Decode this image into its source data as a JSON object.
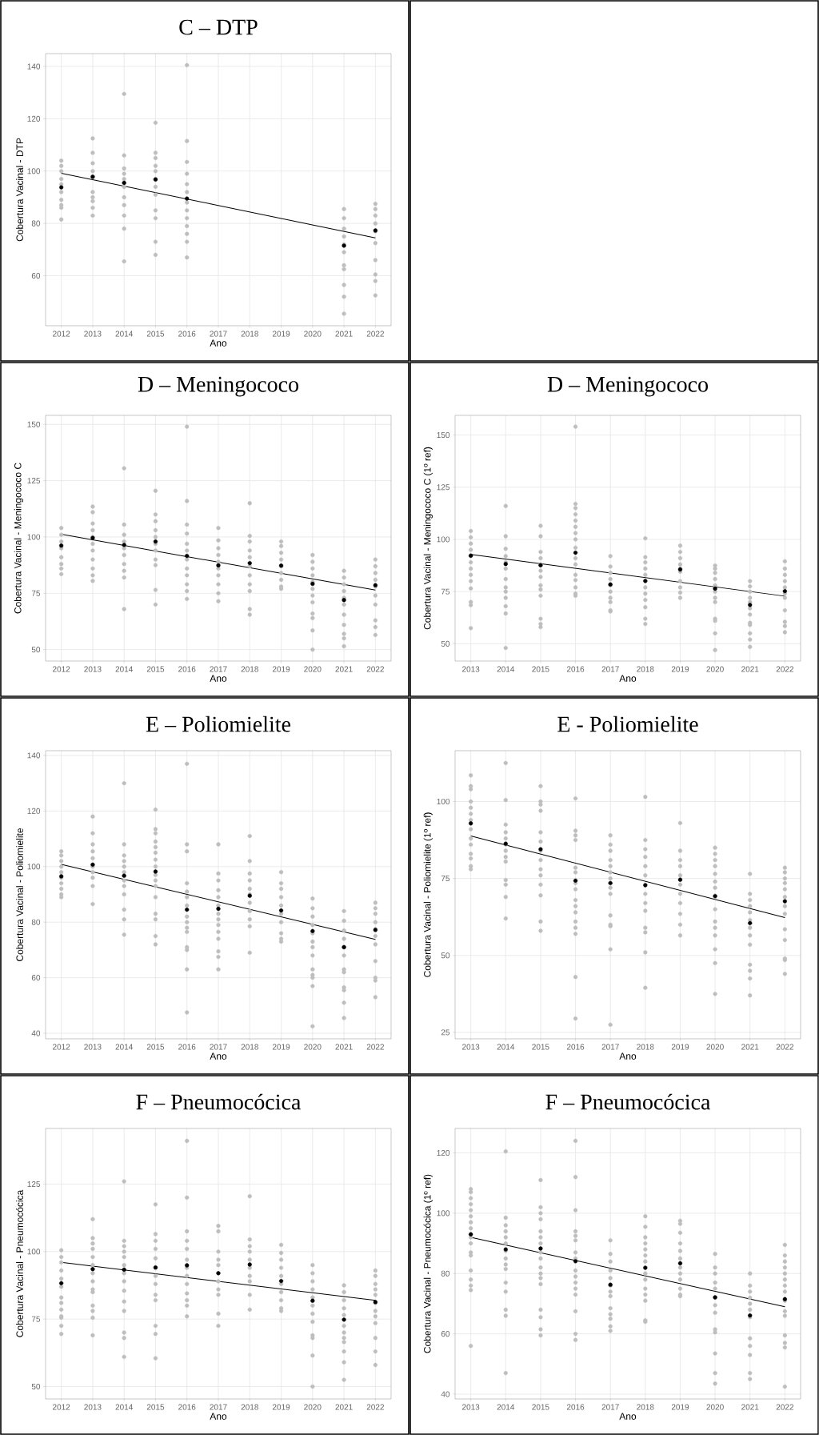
{
  "chart_data": [
    {
      "type": "scatter",
      "title": "C – DTP",
      "xlabel": "Ano",
      "ylabel": "Cobertura Vacinal - DTP",
      "xlim": [
        2011.5,
        2022.5
      ],
      "ylim": [
        40.9,
        144.9
      ],
      "xticks": [
        2012,
        2013,
        2014,
        2015,
        2016,
        2017,
        2018,
        2019,
        2020,
        2021,
        2022
      ],
      "yticks": [
        60,
        80,
        100,
        120,
        140
      ],
      "grid": true,
      "marker": "circle",
      "series": [
        {
          "color": "#bebebe",
          "x": [
            2012,
            2012,
            2012,
            2012,
            2012,
            2012,
            2012,
            2012,
            2012,
            2012,
            2013,
            2013,
            2013,
            2013,
            2013,
            2013,
            2013,
            2013,
            2013,
            2013,
            2014,
            2014,
            2014,
            2014,
            2014,
            2014,
            2014,
            2014,
            2014,
            2014,
            2014,
            2015,
            2015,
            2015,
            2015,
            2015,
            2015,
            2015,
            2015,
            2015,
            2015,
            2015,
            2015,
            2016,
            2016,
            2016,
            2016,
            2016,
            2016,
            2016,
            2016,
            2016,
            2016,
            2016,
            2016,
            2016,
            2021,
            2021,
            2021,
            2021,
            2021,
            2021,
            2021,
            2021,
            2021,
            2021,
            2021,
            2022,
            2022,
            2022,
            2022,
            2022,
            2022,
            2022,
            2022,
            2022,
            2022
          ],
          "values": [
            104,
            102,
            100,
            97,
            95,
            92,
            89,
            87,
            86,
            81.5,
            112.5,
            107,
            103,
            100,
            98,
            92,
            90,
            88.5,
            86,
            83,
            129.5,
            106,
            101,
            99,
            97,
            94,
            90,
            87,
            83,
            78,
            65.5,
            118.5,
            107,
            105,
            102,
            100,
            97,
            94,
            91,
            85,
            82,
            73,
            68,
            140.5,
            111.5,
            103.5,
            99,
            95,
            92,
            88,
            85,
            82,
            79,
            76,
            73,
            67,
            85.5,
            82,
            78,
            75,
            72,
            69,
            64,
            62.5,
            56.5,
            52,
            45.5,
            87.5,
            85.5,
            83,
            80,
            77,
            72.5,
            66,
            60.5,
            58,
            52.5
          ]
        },
        {
          "color": "#000000",
          "x": [
            2012,
            2013,
            2014,
            2015,
            2016,
            2021,
            2022
          ],
          "values": [
            93.8,
            97.8,
            95.5,
            96.8,
            89.5,
            71.5,
            77.3
          ]
        },
        {
          "type": "line",
          "marker": "none",
          "color": "#000000",
          "x": [
            2012,
            2022
          ],
          "values": [
            99.2,
            74.5
          ]
        }
      ]
    },
    {
      "type": "scatter",
      "title": "D – Meningococo",
      "xlabel": "Ano",
      "ylabel": "Cobertura Vacinal - Meningococo C",
      "xlim": [
        2011.5,
        2022.5
      ],
      "ylim": [
        44.9,
        154
      ],
      "xticks": [
        2012,
        2013,
        2014,
        2015,
        2016,
        2017,
        2018,
        2019,
        2020,
        2021,
        2022
      ],
      "yticks": [
        50,
        75,
        100,
        125,
        150
      ],
      "grid": true,
      "marker": "circle",
      "series": [
        {
          "color": "#bebebe",
          "x": [
            2012,
            2012,
            2012,
            2012,
            2012,
            2012,
            2012,
            2012,
            2013,
            2013,
            2013,
            2013,
            2013,
            2013,
            2013,
            2013,
            2013,
            2013,
            2013,
            2014,
            2014,
            2014,
            2014,
            2014,
            2014,
            2014,
            2014,
            2014,
            2014,
            2015,
            2015,
            2015,
            2015,
            2015,
            2015,
            2015,
            2015,
            2015,
            2015,
            2015,
            2016,
            2016,
            2016,
            2016,
            2016,
            2016,
            2016,
            2016,
            2016,
            2016,
            2016,
            2016,
            2017,
            2017,
            2017,
            2017,
            2017,
            2017,
            2017,
            2017,
            2017,
            2017,
            2018,
            2018,
            2018,
            2018,
            2018,
            2018,
            2018,
            2018,
            2018,
            2018,
            2018,
            2019,
            2019,
            2019,
            2019,
            2019,
            2019,
            2019,
            2019,
            2019,
            2020,
            2020,
            2020,
            2020,
            2020,
            2020,
            2020,
            2020,
            2020,
            2020,
            2020,
            2020,
            2021,
            2021,
            2021,
            2021,
            2021,
            2021,
            2021,
            2021,
            2021,
            2021,
            2021,
            2022,
            2022,
            2022,
            2022,
            2022,
            2022,
            2022,
            2022,
            2022,
            2022
          ],
          "values": [
            104,
            101,
            98,
            95,
            91,
            88,
            86,
            83.5,
            113.5,
            111,
            106,
            103,
            100,
            97,
            94,
            90,
            86,
            83,
            80.5,
            130.5,
            105.5,
            101,
            98,
            95,
            92,
            88,
            85,
            82,
            68,
            120.5,
            110,
            107,
            103,
            100,
            97,
            94,
            90,
            87.5,
            76.5,
            70,
            149,
            116,
            105.5,
            101.5,
            97,
            94,
            90,
            86,
            83,
            79,
            76,
            72.5,
            104,
            98.5,
            95,
            92,
            89,
            86,
            83,
            79,
            75,
            71.5,
            115,
            100.5,
            98,
            94,
            91,
            87,
            83,
            79,
            76,
            68,
            65.5,
            98,
            96,
            93,
            90,
            87,
            84,
            81,
            78,
            77,
            92,
            89,
            86,
            83,
            80,
            77,
            74,
            71,
            66,
            64,
            58.5,
            50,
            85,
            82,
            79,
            76,
            73,
            70,
            65.5,
            61,
            57,
            55,
            51.5,
            90,
            87,
            84,
            81,
            78,
            74,
            70,
            63,
            60,
            56.5
          ]
        },
        {
          "color": "#000000",
          "x": [
            2012,
            2013,
            2014,
            2015,
            2016,
            2017,
            2018,
            2019,
            2020,
            2021,
            2022
          ],
          "values": [
            96.2,
            99.6,
            96.5,
            98,
            91.6,
            87.4,
            88.4,
            87.3,
            79.2,
            72,
            78.6
          ]
        },
        {
          "type": "line",
          "marker": "none",
          "color": "#000000",
          "x": [
            2012,
            2022
          ],
          "values": [
            101.2,
            76.4
          ]
        }
      ]
    },
    {
      "type": "scatter",
      "title": "D – Meningococo",
      "xlabel": "Ano",
      "ylabel": "Cobertura Vacinal - Meningococo C (1º ref)",
      "xlim": [
        2012.55,
        2022.45
      ],
      "ylim": [
        41.7,
        159.4
      ],
      "xticks": [
        2013,
        2014,
        2015,
        2016,
        2017,
        2018,
        2019,
        2020,
        2021,
        2022
      ],
      "yticks": [
        50,
        75,
        100,
        125,
        150
      ],
      "grid": true,
      "marker": "circle",
      "series": [
        {
          "color": "#bebebe",
          "x": [
            2013,
            2013,
            2013,
            2013,
            2013,
            2013,
            2013,
            2013,
            2013,
            2013,
            2013,
            2013,
            2013,
            2014,
            2014,
            2014,
            2014,
            2014,
            2014,
            2014,
            2014,
            2014,
            2014,
            2014,
            2014,
            2014,
            2015,
            2015,
            2015,
            2015,
            2015,
            2015,
            2015,
            2015,
            2015,
            2015,
            2015,
            2015,
            2015,
            2016,
            2016,
            2016,
            2016,
            2016,
            2016,
            2016,
            2016,
            2016,
            2016,
            2016,
            2016,
            2016,
            2016,
            2016,
            2016,
            2017,
            2017,
            2017,
            2017,
            2017,
            2017,
            2017,
            2017,
            2017,
            2017,
            2018,
            2018,
            2018,
            2018,
            2018,
            2018,
            2018,
            2018,
            2018,
            2018,
            2018,
            2018,
            2019,
            2019,
            2019,
            2019,
            2019,
            2019,
            2019,
            2019,
            2019,
            2019,
            2020,
            2020,
            2020,
            2020,
            2020,
            2020,
            2020,
            2020,
            2020,
            2020,
            2020,
            2020,
            2021,
            2021,
            2021,
            2021,
            2021,
            2021,
            2021,
            2021,
            2021,
            2021,
            2021,
            2021,
            2022,
            2022,
            2022,
            2022,
            2022,
            2022,
            2022,
            2022,
            2022,
            2022,
            2022
          ],
          "values": [
            104,
            101,
            98,
            95,
            92,
            89,
            86,
            83,
            80,
            76.5,
            70,
            68.5,
            57.5,
            116,
            101.5,
            95.5,
            92,
            89,
            86,
            81,
            77,
            75,
            72,
            68,
            64.5,
            48,
            106.5,
            101.5,
            94,
            91,
            88,
            85,
            82,
            78,
            76,
            73,
            62,
            59.5,
            58,
            154,
            117,
            115,
            112,
            109,
            106,
            103,
            100,
            96,
            91,
            88,
            83,
            80.5,
            77,
            74,
            73,
            92,
            87,
            84,
            81,
            78,
            75,
            72,
            70,
            66,
            65.5,
            100.5,
            91.5,
            89,
            86,
            83,
            80,
            77,
            74,
            71,
            67.5,
            62,
            59.5,
            97,
            94,
            91,
            88,
            86,
            84.5,
            80,
            77,
            74.5,
            72,
            87.5,
            86,
            84,
            81,
            78,
            75,
            72,
            70,
            62,
            61,
            55,
            47,
            80,
            77.5,
            75,
            72,
            70,
            67,
            64,
            60,
            59,
            55,
            52,
            48.5,
            89.5,
            86,
            83,
            80,
            77,
            74,
            72,
            66,
            60.5,
            58.5,
            55.5
          ]
        },
        {
          "color": "#000000",
          "x": [
            2013,
            2014,
            2015,
            2016,
            2017,
            2018,
            2019,
            2020,
            2021,
            2022
          ],
          "values": [
            92.2,
            88.2,
            87.6,
            93.6,
            78.4,
            80.1,
            85.6,
            76.4,
            68.6,
            75.2
          ]
        },
        {
          "type": "line",
          "marker": "none",
          "color": "#000000",
          "x": [
            2013,
            2022
          ],
          "values": [
            92.8,
            72.8
          ]
        }
      ]
    },
    {
      "type": "scatter",
      "title": "E – Poliomielite",
      "xlabel": "Ano",
      "ylabel": "Cobertura Vacinal - Poliomielite",
      "xlim": [
        2011.5,
        2022.5
      ],
      "ylim": [
        38,
        141.7
      ],
      "xticks": [
        2012,
        2013,
        2014,
        2015,
        2016,
        2017,
        2018,
        2019,
        2020,
        2021,
        2022
      ],
      "yticks": [
        40,
        60,
        80,
        100,
        120,
        140
      ],
      "grid": true,
      "marker": "circle",
      "series": [
        {
          "color": "#bebebe",
          "x": [
            2012,
            2012,
            2012,
            2012,
            2012,
            2012,
            2012,
            2012,
            2012,
            2012,
            2013,
            2013,
            2013,
            2013,
            2013,
            2013,
            2013,
            2013,
            2013,
            2013,
            2014,
            2014,
            2014,
            2014,
            2014,
            2014,
            2014,
            2014,
            2014,
            2014,
            2014,
            2014,
            2015,
            2015,
            2015,
            2015,
            2015,
            2015,
            2015,
            2015,
            2015,
            2015,
            2015,
            2015,
            2015,
            2015,
            2015,
            2015,
            2016,
            2016,
            2016,
            2016,
            2016,
            2016,
            2016,
            2016,
            2016,
            2016,
            2016,
            2016,
            2016,
            2016,
            2016,
            2017,
            2017,
            2017,
            2017,
            2017,
            2017,
            2017,
            2017,
            2017,
            2017,
            2017,
            2017,
            2017,
            2017,
            2018,
            2018,
            2018,
            2018,
            2018,
            2018,
            2018,
            2018,
            2018,
            2018,
            2018,
            2019,
            2019,
            2019,
            2019,
            2019,
            2019,
            2019,
            2019,
            2019,
            2019,
            2020,
            2020,
            2020,
            2020,
            2020,
            2020,
            2020,
            2020,
            2020,
            2020,
            2020,
            2020,
            2020,
            2021,
            2021,
            2021,
            2021,
            2021,
            2021,
            2021,
            2021,
            2021,
            2021,
            2021,
            2021,
            2022,
            2022,
            2022,
            2022,
            2022,
            2022,
            2022,
            2022,
            2022,
            2022,
            2022
          ],
          "values": [
            105.5,
            104,
            102,
            100,
            98,
            96,
            94,
            92,
            90,
            89,
            118,
            112,
            108,
            105.5,
            103,
            100,
            98,
            96,
            93,
            86.5,
            130,
            108,
            104,
            102,
            100,
            98,
            95,
            93,
            90,
            84.5,
            81,
            75.5,
            120.5,
            113.5,
            112,
            109,
            107,
            105,
            102.5,
            100,
            97,
            95,
            93,
            89,
            83,
            81,
            75,
            72,
            137,
            108,
            105.5,
            94,
            91,
            89,
            86,
            82,
            80,
            78,
            76.5,
            71,
            70,
            63,
            47.5,
            108,
            97.5,
            95,
            91.5,
            89,
            86,
            83,
            81,
            79,
            76.5,
            74,
            69.5,
            67.5,
            63,
            111,
            102,
            97.5,
            95,
            92,
            90,
            87,
            84,
            81,
            78.5,
            69,
            98,
            94,
            92,
            89,
            86,
            83,
            80,
            76,
            74,
            73,
            88.5,
            85,
            82,
            79,
            76,
            73,
            71,
            68,
            63,
            61,
            60,
            57,
            42.5,
            84,
            80.5,
            77,
            74,
            71,
            68,
            63,
            62,
            56.5,
            55.5,
            51,
            45.5,
            87,
            85,
            83,
            80,
            77.5,
            75,
            72,
            66,
            60,
            59,
            53
          ]
        },
        {
          "color": "#000000",
          "x": [
            2012,
            2013,
            2014,
            2015,
            2016,
            2017,
            2018,
            2019,
            2020,
            2021,
            2022
          ],
          "values": [
            96.5,
            100.7,
            96.7,
            98.2,
            84.5,
            84.8,
            89.5,
            84.2,
            76.8,
            71,
            77.2
          ]
        },
        {
          "type": "line",
          "marker": "none",
          "color": "#000000",
          "x": [
            2012,
            2022
          ],
          "values": [
            100.8,
            73.8
          ]
        }
      ]
    },
    {
      "type": "scatter",
      "title": "E - Poliomielite",
      "xlabel": "Ano",
      "ylabel": "Cobertura Vacinal - Poliomielite (1º ref)",
      "xlim": [
        2012.55,
        2022.45
      ],
      "ylim": [
        22.9,
        116.5
      ],
      "xticks": [
        2013,
        2014,
        2015,
        2016,
        2017,
        2018,
        2019,
        2020,
        2021,
        2022
      ],
      "yticks": [
        25,
        50,
        75,
        100
      ],
      "grid": true,
      "marker": "circle",
      "series": [
        {
          "color": "#bebebe",
          "x": [
            2013,
            2013,
            2013,
            2013,
            2013,
            2013,
            2013,
            2013,
            2013,
            2013,
            2013,
            2013,
            2013,
            2013,
            2014,
            2014,
            2014,
            2014,
            2014,
            2014,
            2014,
            2014,
            2014,
            2014,
            2014,
            2014,
            2014,
            2015,
            2015,
            2015,
            2015,
            2015,
            2015,
            2015,
            2015,
            2015,
            2015,
            2015,
            2015,
            2015,
            2015,
            2016,
            2016,
            2016,
            2016,
            2016,
            2016,
            2016,
            2016,
            2016,
            2016,
            2016,
            2016,
            2016,
            2016,
            2016,
            2016,
            2017,
            2017,
            2017,
            2017,
            2017,
            2017,
            2017,
            2017,
            2017,
            2017,
            2017,
            2017,
            2017,
            2017,
            2018,
            2018,
            2018,
            2018,
            2018,
            2018,
            2018,
            2018,
            2018,
            2018,
            2018,
            2018,
            2018,
            2018,
            2019,
            2019,
            2019,
            2019,
            2019,
            2019,
            2019,
            2019,
            2019,
            2019,
            2019,
            2020,
            2020,
            2020,
            2020,
            2020,
            2020,
            2020,
            2020,
            2020,
            2020,
            2020,
            2020,
            2020,
            2020,
            2020,
            2021,
            2021,
            2021,
            2021,
            2021,
            2021,
            2021,
            2021,
            2021,
            2021,
            2021,
            2021,
            2021,
            2022,
            2022,
            2022,
            2022,
            2022,
            2022,
            2022,
            2022,
            2022,
            2022,
            2022,
            2022,
            2022
          ],
          "values": [
            108.5,
            105,
            104,
            100,
            98,
            96,
            94,
            91,
            88,
            86,
            83,
            81.5,
            79,
            78,
            112.5,
            100.5,
            92.5,
            90,
            88,
            86,
            84,
            82,
            80.5,
            74.5,
            73,
            69,
            62,
            105,
            100,
            99,
            97,
            90,
            87,
            84,
            81,
            78,
            76,
            73,
            69.5,
            61,
            58,
            101,
            90.5,
            89,
            87.5,
            78.5,
            77,
            73.5,
            71.5,
            68,
            66,
            64,
            61,
            59,
            57,
            43,
            29.5,
            89,
            86,
            84,
            81,
            79,
            77,
            75,
            72,
            70,
            63,
            60,
            59.5,
            52,
            27.5,
            101.5,
            87.5,
            84.5,
            82,
            79,
            76,
            73,
            70,
            67,
            64.5,
            59,
            57.5,
            51,
            39.5,
            93,
            84,
            81,
            79,
            76,
            73,
            70,
            67,
            63.5,
            60,
            56.5,
            85,
            83,
            81,
            79,
            76.5,
            74,
            72,
            69,
            65,
            61,
            59,
            56.5,
            52,
            47.5,
            37.5,
            76.5,
            70,
            68,
            66,
            64,
            61.5,
            59,
            56.5,
            53.5,
            47,
            45,
            42.5,
            37,
            78.5,
            77,
            75,
            73.5,
            71.5,
            69,
            66,
            63.5,
            58.5,
            55,
            49,
            48.5,
            44
          ]
        },
        {
          "color": "#000000",
          "x": [
            2013,
            2014,
            2015,
            2016,
            2017,
            2018,
            2019,
            2020,
            2021,
            2022
          ],
          "values": [
            92.9,
            86.3,
            84.5,
            74.3,
            73.5,
            72.8,
            74.6,
            69.3,
            60.5,
            67.6
          ]
        },
        {
          "type": "line",
          "marker": "none",
          "color": "#000000",
          "x": [
            2013,
            2022
          ],
          "values": [
            88.8,
            62.3
          ]
        }
      ]
    },
    {
      "type": "scatter",
      "title": "F – Pneumocócica",
      "xlabel": "Ano",
      "ylabel": "Cobertura Vacinal - Pneumocócica",
      "xlim": [
        2011.5,
        2022.5
      ],
      "ylim": [
        45.4,
        145.6
      ],
      "xticks": [
        2012,
        2013,
        2014,
        2015,
        2016,
        2017,
        2018,
        2019,
        2020,
        2021,
        2022
      ],
      "yticks": [
        50,
        75,
        100,
        125
      ],
      "grid": true,
      "marker": "circle",
      "series": [
        {
          "color": "#bebebe",
          "x": [
            2012,
            2012,
            2012,
            2012,
            2012,
            2012,
            2012,
            2012,
            2012,
            2012,
            2012,
            2012,
            2012,
            2013,
            2013,
            2013,
            2013,
            2013,
            2013,
            2013,
            2013,
            2013,
            2013,
            2013,
            2013,
            2013,
            2013,
            2014,
            2014,
            2014,
            2014,
            2014,
            2014,
            2014,
            2014,
            2014,
            2014,
            2014,
            2014,
            2014,
            2014,
            2015,
            2015,
            2015,
            2015,
            2015,
            2015,
            2015,
            2015,
            2015,
            2015,
            2015,
            2015,
            2015,
            2016,
            2016,
            2016,
            2016,
            2016,
            2016,
            2016,
            2016,
            2016,
            2016,
            2016,
            2016,
            2016,
            2017,
            2017,
            2017,
            2017,
            2017,
            2017,
            2017,
            2017,
            2017,
            2017,
            2017,
            2018,
            2018,
            2018,
            2018,
            2018,
            2018,
            2018,
            2018,
            2018,
            2018,
            2019,
            2019,
            2019,
            2019,
            2019,
            2019,
            2019,
            2019,
            2019,
            2019,
            2020,
            2020,
            2020,
            2020,
            2020,
            2020,
            2020,
            2020,
            2020,
            2020,
            2020,
            2020,
            2021,
            2021,
            2021,
            2021,
            2021,
            2021,
            2021,
            2021,
            2021,
            2021,
            2021,
            2021,
            2022,
            2022,
            2022,
            2022,
            2022,
            2022,
            2022,
            2022,
            2022,
            2022,
            2022,
            2022
          ],
          "values": [
            100.5,
            98,
            96,
            93,
            90,
            87,
            83,
            81,
            78.5,
            76,
            75.5,
            72.5,
            69.5,
            112,
            105,
            103,
            101,
            98,
            95,
            92,
            89,
            86,
            85,
            80,
            78,
            75.5,
            69,
            126,
            104,
            102,
            100,
            98,
            95,
            92,
            89,
            85.5,
            81.5,
            78,
            70,
            68,
            61,
            117.5,
            106.5,
            104,
            101,
            97.5,
            94,
            91,
            88,
            84,
            82,
            72.5,
            69.5,
            60.5,
            141,
            120,
            107.5,
            104,
            101,
            97,
            94,
            91,
            88,
            84.5,
            82,
            80,
            76,
            109.5,
            107.5,
            100,
            97,
            95,
            92,
            89,
            86,
            84,
            77,
            72.5,
            120.5,
            104.5,
            102,
            100,
            97,
            94,
            91,
            89,
            84,
            78.5,
            102.5,
            99.5,
            97,
            94,
            91,
            88,
            85,
            82,
            79,
            78,
            95,
            92,
            89,
            86,
            83,
            80,
            77,
            74,
            69,
            68,
            61.5,
            50,
            87.5,
            85,
            82,
            79,
            76.5,
            72.5,
            70,
            68,
            66.5,
            63,
            59,
            52.5,
            93,
            91,
            88,
            86,
            84,
            81,
            78,
            76,
            73.5,
            68,
            63,
            58
          ]
        },
        {
          "color": "#000000",
          "x": [
            2012,
            2013,
            2014,
            2015,
            2016,
            2017,
            2018,
            2019,
            2020,
            2021,
            2022
          ],
          "values": [
            88.3,
            93.5,
            93.3,
            94.1,
            94.9,
            92,
            95.2,
            89.1,
            81.8,
            74.8,
            81.3
          ]
        },
        {
          "type": "line",
          "marker": "none",
          "color": "#000000",
          "x": [
            2012,
            2022
          ],
          "values": [
            96,
            81.9
          ]
        }
      ]
    },
    {
      "type": "scatter",
      "title": "F – Pneumocócica",
      "xlabel": "Ano",
      "ylabel": "Cobertura Vacinal - Pneumocócica (1º ref)",
      "xlim": [
        2012.55,
        2022.45
      ],
      "ylim": [
        38.4,
        128.1
      ],
      "xticks": [
        2013,
        2014,
        2015,
        2016,
        2017,
        2018,
        2019,
        2020,
        2021,
        2022
      ],
      "yticks": [
        40,
        60,
        80,
        100,
        120
      ],
      "grid": true,
      "marker": "circle",
      "series": [
        {
          "color": "#bebebe",
          "x": [
            2013,
            2013,
            2013,
            2013,
            2013,
            2013,
            2013,
            2013,
            2013,
            2013,
            2013,
            2013,
            2013,
            2013,
            2013,
            2013,
            2013,
            2014,
            2014,
            2014,
            2014,
            2014,
            2014,
            2014,
            2014,
            2014,
            2014,
            2014,
            2014,
            2014,
            2014,
            2014,
            2015,
            2015,
            2015,
            2015,
            2015,
            2015,
            2015,
            2015,
            2015,
            2015,
            2015,
            2015,
            2015,
            2015,
            2015,
            2015,
            2015,
            2016,
            2016,
            2016,
            2016,
            2016,
            2016,
            2016,
            2016,
            2016,
            2016,
            2016,
            2016,
            2016,
            2016,
            2016,
            2016,
            2017,
            2017,
            2017,
            2017,
            2017,
            2017,
            2017,
            2017,
            2017,
            2017,
            2017,
            2017,
            2017,
            2018,
            2018,
            2018,
            2018,
            2018,
            2018,
            2018,
            2018,
            2018,
            2018,
            2018,
            2018,
            2018,
            2018,
            2018,
            2019,
            2019,
            2019,
            2019,
            2019,
            2019,
            2019,
            2019,
            2019,
            2019,
            2019,
            2019,
            2020,
            2020,
            2020,
            2020,
            2020,
            2020,
            2020,
            2020,
            2020,
            2020,
            2020,
            2020,
            2020,
            2021,
            2021,
            2021,
            2021,
            2021,
            2021,
            2021,
            2021,
            2021,
            2021,
            2021,
            2021,
            2022,
            2022,
            2022,
            2022,
            2022,
            2022,
            2022,
            2022,
            2022,
            2022,
            2022,
            2022,
            2022,
            2022,
            2022
          ],
          "values": [
            108,
            107,
            105,
            103,
            101,
            99,
            97,
            95,
            92,
            90,
            87,
            86,
            81,
            78,
            76,
            74.5,
            56,
            120.5,
            98.5,
            96,
            94,
            92,
            90,
            87.5,
            85,
            83,
            81.5,
            77,
            74,
            68,
            66,
            47,
            111,
            102,
            100,
            98,
            94,
            92,
            90,
            87,
            85,
            82,
            80,
            78.5,
            76.5,
            68,
            65.5,
            61.5,
            59.5,
            124,
            112,
            101,
            94,
            92.5,
            91,
            87,
            85,
            81,
            79,
            77,
            75,
            73,
            67.5,
            60,
            58,
            91,
            86.5,
            84,
            81,
            78.5,
            76,
            74,
            72.5,
            68.5,
            66.5,
            65,
            62.5,
            61,
            99,
            95.5,
            92,
            90,
            88,
            86,
            84,
            82,
            80,
            78,
            75,
            73,
            71,
            64.5,
            64,
            97.5,
            96.5,
            93.5,
            90,
            87.5,
            85,
            82,
            80,
            78,
            75,
            73,
            72.5,
            86.5,
            82,
            80,
            77,
            75,
            72,
            69.5,
            67,
            61.5,
            60.5,
            53.5,
            47,
            43.5,
            80,
            76,
            74,
            72,
            70,
            68,
            65.5,
            58.5,
            56,
            53,
            47,
            45,
            89.5,
            86,
            84,
            82,
            80,
            78,
            76,
            74,
            71,
            67.5,
            66,
            59.5,
            57,
            55.5,
            42.5
          ]
        },
        {
          "color": "#000000",
          "x": [
            2013,
            2014,
            2015,
            2016,
            2017,
            2018,
            2019,
            2020,
            2021,
            2022
          ],
          "values": [
            93,
            88,
            88.3,
            84.1,
            76.3,
            81.9,
            83.4,
            72.1,
            66.1,
            71.5
          ]
        },
        {
          "type": "line",
          "marker": "none",
          "color": "#000000",
          "x": [
            2013,
            2022
          ],
          "values": [
            92,
            69
          ]
        }
      ]
    }
  ]
}
